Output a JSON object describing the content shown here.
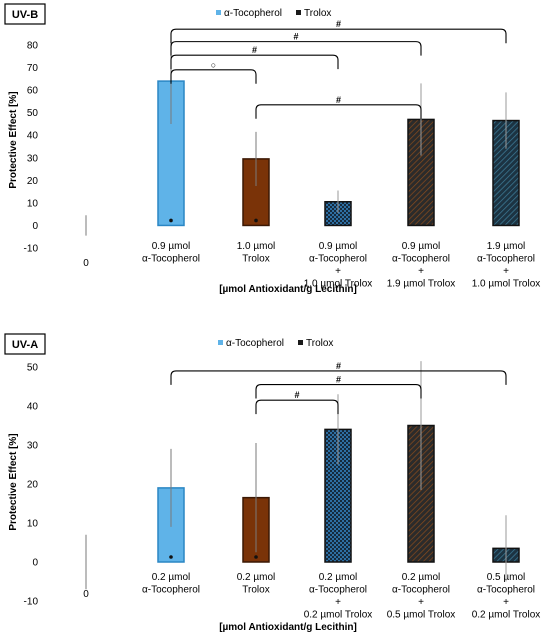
{
  "chart_data": [
    {
      "type": "bar",
      "panel_label": "UV-B",
      "legend": [
        "α-Tocopherol",
        "Trolox"
      ],
      "ylabel": "Protective Effect [%]",
      "xlabel": "[µmol Antioxidant/g Lecithin]",
      "ylim": [
        -10,
        80
      ],
      "yticks": [
        "-10",
        "0",
        "10",
        "20",
        "30",
        "40",
        "50",
        "60",
        "70",
        "80"
      ],
      "categories": [
        [
          "0"
        ],
        [
          "0.9 µmol",
          "α-Tocopherol"
        ],
        [
          "1.0 µmol",
          "Trolox"
        ],
        [
          "0.9 µmol",
          "α-Tocopherol",
          "+",
          "1.0 µmol Trolox"
        ],
        [
          "0.9 µmol",
          "α-Tocopherol",
          "+",
          "1.9 µmol Trolox"
        ],
        [
          "1.9 µmol",
          "α-Tocopherol",
          "+",
          "1.0 µmol Trolox"
        ]
      ],
      "values": [
        0,
        64,
        29.5,
        10.5,
        47,
        46.5
      ],
      "errors": [
        4.5,
        19,
        12,
        5,
        16,
        12.5
      ],
      "styles": [
        "none",
        "toco",
        "trolox",
        "grid",
        "hatch",
        "hatch2"
      ],
      "brackets": [
        {
          "from": 1,
          "to": 2,
          "level": 69,
          "label": "○"
        },
        {
          "from": 1,
          "to": 3,
          "level": 75.5,
          "label": "#"
        },
        {
          "from": 1,
          "to": 4,
          "level": 81.5,
          "label": "#"
        },
        {
          "from": 1,
          "to": 5,
          "level": 87,
          "label": "#"
        },
        {
          "from": 2,
          "to": 4,
          "level": 53.5,
          "label": "#"
        }
      ]
    },
    {
      "type": "bar",
      "panel_label": "UV-A",
      "legend": [
        "α-Tocopherol",
        "Trolox"
      ],
      "ylabel": "Protective Effect [%]",
      "xlabel": "[µmol Antioxidant/g Lecithin]",
      "ylim": [
        -10,
        50
      ],
      "yticks": [
        "-10",
        "0",
        "10",
        "20",
        "30",
        "40",
        "50"
      ],
      "categories": [
        [
          "0"
        ],
        [
          "0.2 µmol",
          "α-Tocopherol"
        ],
        [
          "0.2 µmol",
          "Trolox"
        ],
        [
          "0.2 µmol",
          "α-Tocopherol",
          "+",
          "0.2 µmol Trolox"
        ],
        [
          "0.2 µmol",
          "α-Tocopherol",
          "+",
          "0.5 µmol Trolox"
        ],
        [
          "0.5 µmol",
          "α-Tocopherol",
          "+",
          "0.2 µmol Trolox"
        ]
      ],
      "values": [
        0,
        19,
        16.5,
        34,
        35,
        3.5
      ],
      "errors": [
        7,
        10,
        14,
        9,
        16.5,
        8.5
      ],
      "styles": [
        "none",
        "toco",
        "trolox",
        "grid",
        "hatch",
        "hatch2"
      ],
      "brackets": [
        {
          "from": 2,
          "to": 3,
          "level": 41.5,
          "label": "#"
        },
        {
          "from": 2,
          "to": 4,
          "level": 45.5,
          "label": "#"
        },
        {
          "from": 1,
          "to": 5,
          "level": 49,
          "label": "#"
        }
      ]
    }
  ]
}
